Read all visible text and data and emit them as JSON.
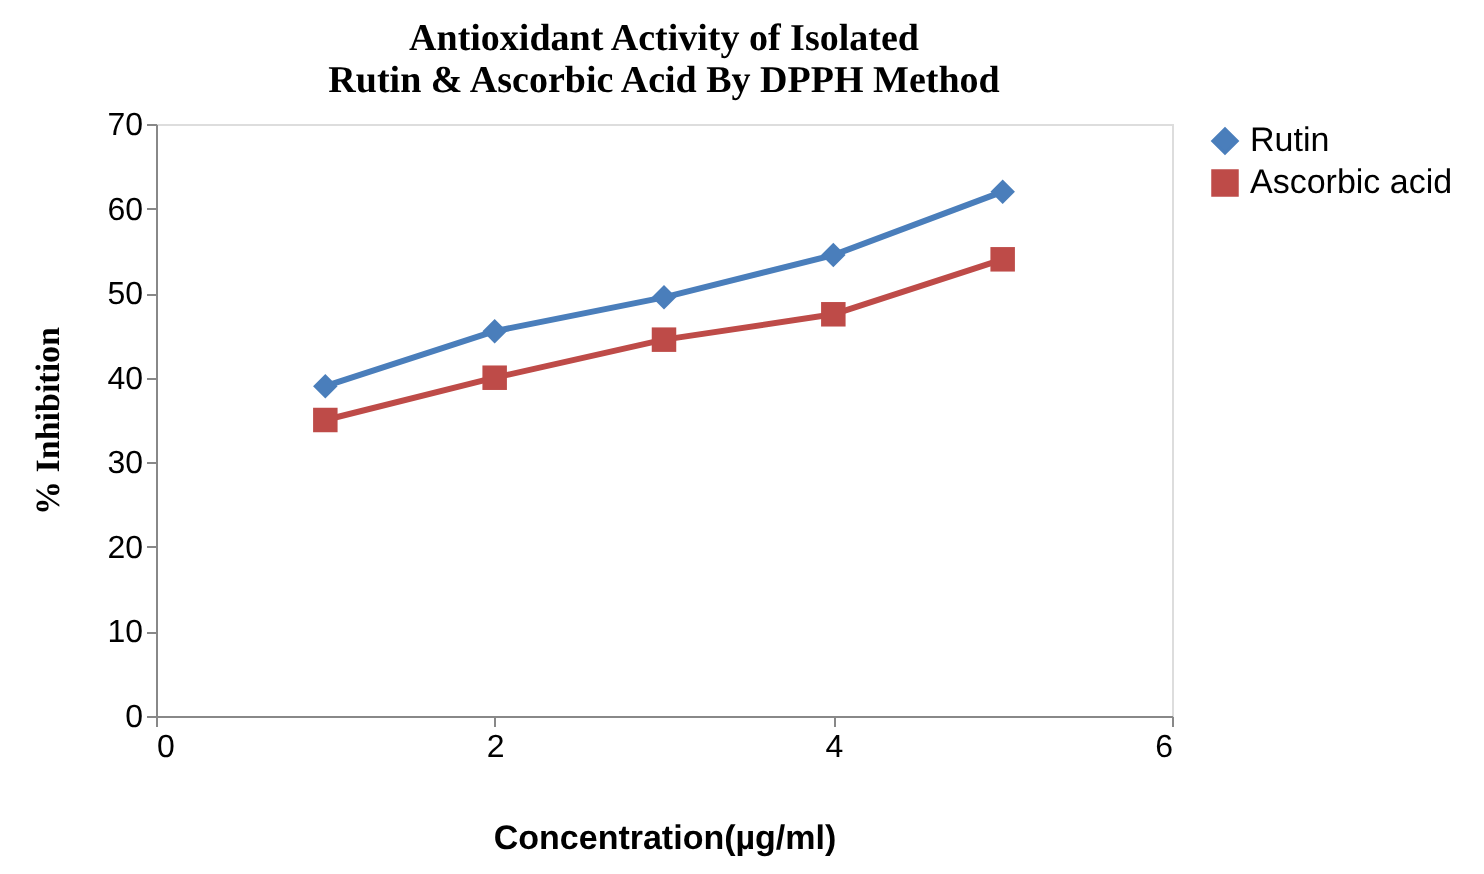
{
  "chart_data": {
    "type": "line",
    "title": "Antioxidant Activity of Isolated Rutin & Ascorbic Acid By DPPH Method",
    "xlabel": "Concentration(µg/ml)",
    "ylabel": "% Inhibition",
    "x": [
      1,
      2,
      3,
      4,
      5
    ],
    "series": [
      {
        "name": "Rutin",
        "color": "#4a7ebb",
        "marker": "diamond",
        "values": [
          39,
          45.5,
          49.5,
          54.5,
          62
        ]
      },
      {
        "name": "Ascorbic acid",
        "color": "#be4b48",
        "marker": "square",
        "values": [
          35,
          40,
          44.5,
          47.5,
          54
        ]
      }
    ],
    "xlim": [
      0,
      6
    ],
    "xticks": [
      0,
      2,
      4,
      6
    ],
    "ylim": [
      0,
      70
    ],
    "yticks": [
      0,
      10,
      20,
      30,
      40,
      50,
      60,
      70
    ],
    "grid": false,
    "legend": "right",
    "line_style": "solid"
  }
}
